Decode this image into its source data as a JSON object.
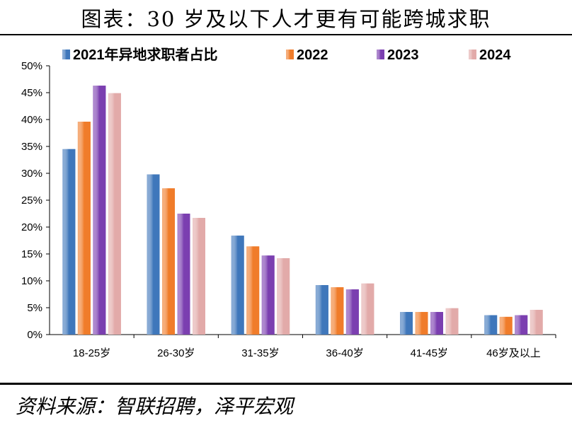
{
  "title": "图表：30 岁及以下人才更有可能跨城求职",
  "source": "资料来源：智联招聘，泽平宏观",
  "chart_data": {
    "type": "bar",
    "title": "图表：30 岁及以下人才更有可能跨城求职",
    "categories": [
      "18-25岁",
      "26-30岁",
      "31-35岁",
      "36-40岁",
      "41-45岁",
      "46岁及以上"
    ],
    "series": [
      {
        "name": "2021年异地求职者占比",
        "color": "#3f77bb",
        "values": [
          34.5,
          29.8,
          18.4,
          9.2,
          4.2,
          3.6
        ]
      },
      {
        "name": "2022",
        "color": "#f07c2a",
        "values": [
          39.6,
          27.2,
          16.4,
          8.8,
          4.2,
          3.3
        ]
      },
      {
        "name": "2023",
        "color": "#7b3fb0",
        "values": [
          46.3,
          22.5,
          14.7,
          8.4,
          4.2,
          3.6
        ]
      },
      {
        "name": "2024",
        "color": "#e2aaa9",
        "values": [
          44.9,
          21.7,
          14.2,
          9.5,
          4.9,
          4.6
        ]
      }
    ],
    "ylim": [
      0,
      50
    ],
    "yticks": [
      "0%",
      "5%",
      "10%",
      "15%",
      "20%",
      "25%",
      "30%",
      "35%",
      "40%",
      "45%",
      "50%"
    ],
    "grid": false,
    "legend": "top"
  }
}
